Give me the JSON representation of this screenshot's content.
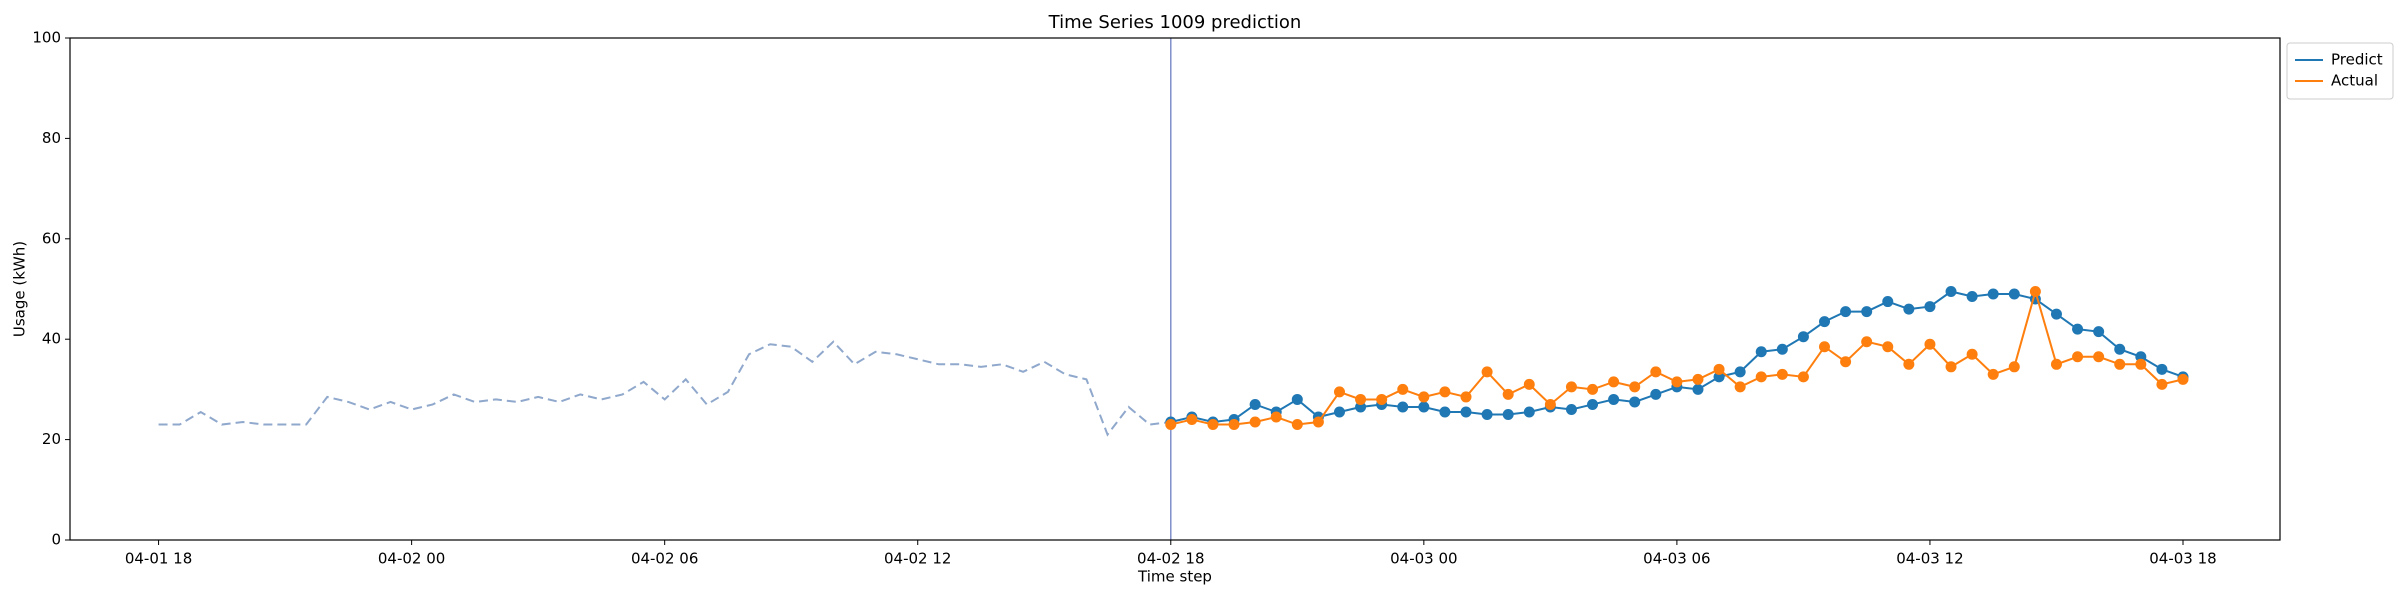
{
  "chart_data": {
    "type": "line",
    "title": "Time Series 1009 prediction",
    "xlabel": "Time step",
    "ylabel": "Usage (kWh)",
    "xlim": [
      "04-01 15:54",
      "04-03 20:18"
    ],
    "xticks": [
      {
        "value": "04-01 18:00",
        "label": "04-01 18"
      },
      {
        "value": "04-02 00:00",
        "label": "04-02 00"
      },
      {
        "value": "04-02 06:00",
        "label": "04-02 06"
      },
      {
        "value": "04-02 12:00",
        "label": "04-02 12"
      },
      {
        "value": "04-02 18:00",
        "label": "04-02 18"
      },
      {
        "value": "04-03 00:00",
        "label": "04-03 00"
      },
      {
        "value": "04-03 06:00",
        "label": "04-03 06"
      },
      {
        "value": "04-03 12:00",
        "label": "04-03 12"
      },
      {
        "value": "04-03 18:00",
        "label": "04-03 18"
      }
    ],
    "ylim": [
      0,
      100
    ],
    "yticks": [
      0,
      20,
      40,
      60,
      80,
      100
    ],
    "grid": false,
    "legend": "upper right outside",
    "vline": {
      "x": "04-02 18:00",
      "color": "#7f8fc8"
    },
    "history": {
      "color": "#8fa8cc",
      "style": "dashed",
      "x": [
        "04-01 18:00",
        "04-01 18:30",
        "04-01 19:00",
        "04-01 19:30",
        "04-01 20:00",
        "04-01 20:30",
        "04-01 21:00",
        "04-01 21:30",
        "04-01 22:00",
        "04-01 22:30",
        "04-01 23:00",
        "04-01 23:30",
        "04-02 00:00",
        "04-02 00:30",
        "04-02 01:00",
        "04-02 01:30",
        "04-02 02:00",
        "04-02 02:30",
        "04-02 03:00",
        "04-02 03:30",
        "04-02 04:00",
        "04-02 04:30",
        "04-02 05:00",
        "04-02 05:30",
        "04-02 06:00",
        "04-02 06:30",
        "04-02 07:00",
        "04-02 07:30",
        "04-02 08:00",
        "04-02 08:30",
        "04-02 09:00",
        "04-02 09:30",
        "04-02 10:00",
        "04-02 10:30",
        "04-02 11:00",
        "04-02 11:30",
        "04-02 12:00",
        "04-02 12:30",
        "04-02 13:00",
        "04-02 13:30",
        "04-02 14:00",
        "04-02 14:30",
        "04-02 15:00",
        "04-02 15:30",
        "04-02 16:00",
        "04-02 16:30",
        "04-02 17:00",
        "04-02 17:30",
        "04-02 18:00"
      ],
      "values": [
        23,
        23,
        25.5,
        23,
        23.5,
        23,
        23,
        23,
        28.5,
        27.5,
        26,
        27.5,
        26,
        27,
        29,
        27.5,
        28,
        27.5,
        28.5,
        27.5,
        29,
        28,
        29,
        31.5,
        28,
        32,
        27,
        29.5,
        37,
        39,
        38.5,
        35.5,
        39.5,
        35,
        37.5,
        37,
        36,
        35,
        35,
        34.5,
        35,
        33.5,
        35.5,
        33,
        32,
        21,
        26.5,
        23,
        23.5
      ]
    },
    "x": [
      "04-02 18:00",
      "04-02 18:30",
      "04-02 19:00",
      "04-02 19:30",
      "04-02 20:00",
      "04-02 20:30",
      "04-02 21:00",
      "04-02 21:30",
      "04-02 22:00",
      "04-02 22:30",
      "04-02 23:00",
      "04-02 23:30",
      "04-03 00:00",
      "04-03 00:30",
      "04-03 01:00",
      "04-03 01:30",
      "04-03 02:00",
      "04-03 02:30",
      "04-03 03:00",
      "04-03 03:30",
      "04-03 04:00",
      "04-03 04:30",
      "04-03 05:00",
      "04-03 05:30",
      "04-03 06:00",
      "04-03 06:30",
      "04-03 07:00",
      "04-03 07:30",
      "04-03 08:00",
      "04-03 08:30",
      "04-03 09:00",
      "04-03 09:30",
      "04-03 10:00",
      "04-03 10:30",
      "04-03 11:00",
      "04-03 11:30",
      "04-03 12:00",
      "04-03 12:30",
      "04-03 13:00",
      "04-03 13:30",
      "04-03 14:00",
      "04-03 14:30",
      "04-03 15:00",
      "04-03 15:30",
      "04-03 16:00",
      "04-03 16:30",
      "04-03 17:00",
      "04-03 17:30",
      "04-03 18:00"
    ],
    "series": [
      {
        "name": "Predict",
        "color": "#1f77b4",
        "values": [
          23.5,
          24.5,
          23.5,
          24,
          27,
          25.5,
          28,
          24.5,
          25.5,
          26.5,
          27,
          26.5,
          26.5,
          25.5,
          25.5,
          25,
          25,
          25.5,
          26.5,
          26,
          27,
          28,
          27.5,
          29,
          30.5,
          30,
          32.5,
          33.5,
          37.5,
          38,
          40.5,
          43.5,
          45.5,
          45.5,
          47.5,
          46,
          46.5,
          49.5,
          48.5,
          49,
          49,
          48,
          45,
          42,
          41.5,
          38,
          36.5,
          34,
          32.5
        ]
      },
      {
        "name": "Actual",
        "color": "#ff7f0e",
        "values": [
          23,
          24,
          23,
          23,
          23.5,
          24.5,
          23,
          23.5,
          29.5,
          28,
          28,
          30,
          28.5,
          29.5,
          28.5,
          33.5,
          29,
          31,
          27,
          30.5,
          30,
          31.5,
          30.5,
          33.5,
          31.5,
          32,
          34,
          30.5,
          32.5,
          33,
          32.5,
          38.5,
          35.5,
          39.5,
          38.5,
          35,
          39,
          34.5,
          37,
          33,
          34.5,
          49.5,
          35,
          36.5,
          36.5,
          35,
          35,
          31,
          32
        ]
      }
    ]
  }
}
